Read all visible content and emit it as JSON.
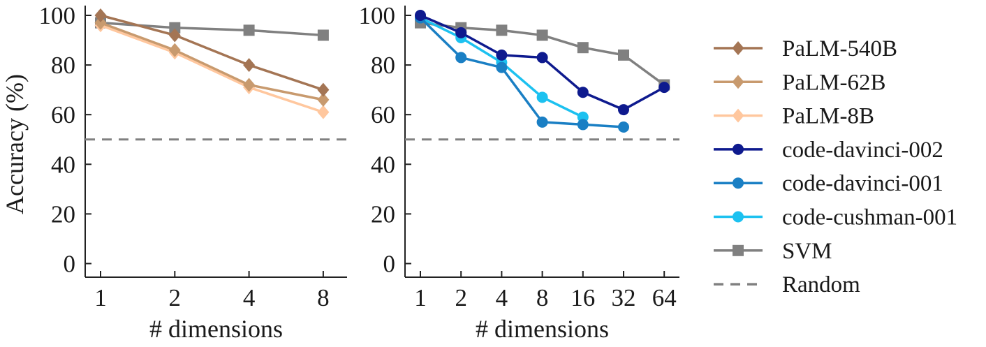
{
  "chart_data": [
    {
      "type": "line",
      "panel": "left",
      "title": "",
      "xlabel": "# dimensions",
      "ylabel": "Accuracy (%)",
      "x_scale": "log2",
      "x": [
        1,
        2,
        4,
        8
      ],
      "x_tick_labels": [
        "1",
        "2",
        "4",
        "8"
      ],
      "ylim": [
        0,
        100
      ],
      "y_ticks": [
        0,
        20,
        40,
        60,
        80,
        100
      ],
      "y_tick_labels": [
        "0",
        "20",
        "40",
        "60",
        "80",
        "100"
      ],
      "grid": false,
      "series": [
        {
          "name": "PaLM-540B",
          "color": "#a47554",
          "marker": "diamond",
          "values": [
            100,
            92,
            80,
            70
          ]
        },
        {
          "name": "PaLM-62B",
          "color": "#c89a6e",
          "marker": "diamond",
          "values": [
            97,
            86,
            72,
            66
          ]
        },
        {
          "name": "PaLM-8B",
          "color": "#ffc79e",
          "marker": "diamond",
          "values": [
            96,
            85,
            71,
            61
          ]
        },
        {
          "name": "SVM",
          "color": "#808080",
          "marker": "square",
          "values": [
            97,
            95,
            94,
            92
          ]
        }
      ],
      "reference_line": {
        "name": "Random",
        "value": 50,
        "color": "#808080",
        "style": "dashed"
      }
    },
    {
      "type": "line",
      "panel": "right",
      "title": "",
      "xlabel": "# dimensions",
      "ylabel": "",
      "x_scale": "log2",
      "x": [
        1,
        2,
        4,
        8,
        16,
        32,
        64
      ],
      "x_tick_labels": [
        "1",
        "2",
        "4",
        "8",
        "16",
        "32",
        "64"
      ],
      "ylim": [
        0,
        100
      ],
      "y_ticks": [
        0,
        20,
        40,
        60,
        80,
        100
      ],
      "y_tick_labels": [
        "0",
        "20",
        "40",
        "60",
        "80",
        "100"
      ],
      "grid": false,
      "series": [
        {
          "name": "code-davinci-002",
          "color": "#0e1a8e",
          "marker": "circle",
          "values": [
            100,
            93,
            84,
            83,
            69,
            62,
            71
          ]
        },
        {
          "name": "code-davinci-001",
          "color": "#1a7fc4",
          "marker": "circle",
          "values": [
            99,
            83,
            79,
            57,
            56,
            55,
            null
          ]
        },
        {
          "name": "code-cushman-001",
          "color": "#1cc1f0",
          "marker": "circle",
          "values": [
            99,
            91,
            81,
            67,
            59,
            null,
            null
          ]
        },
        {
          "name": "SVM",
          "color": "#808080",
          "marker": "square",
          "values": [
            97,
            95,
            94,
            92,
            87,
            84,
            72
          ]
        }
      ],
      "reference_line": {
        "name": "Random",
        "value": 50,
        "color": "#808080",
        "style": "dashed"
      }
    }
  ],
  "legend": {
    "placement": "right",
    "entries": [
      {
        "label": "PaLM-540B",
        "color": "#a47554",
        "marker": "diamond",
        "style": "solid"
      },
      {
        "label": "PaLM-62B",
        "color": "#c89a6e",
        "marker": "diamond",
        "style": "solid"
      },
      {
        "label": "PaLM-8B",
        "color": "#ffc79e",
        "marker": "diamond",
        "style": "solid"
      },
      {
        "label": "code-davinci-002",
        "color": "#0e1a8e",
        "marker": "circle",
        "style": "solid"
      },
      {
        "label": "code-davinci-001",
        "color": "#1a7fc4",
        "marker": "circle",
        "style": "solid"
      },
      {
        "label": "code-cushman-001",
        "color": "#1cc1f0",
        "marker": "circle",
        "style": "solid"
      },
      {
        "label": "SVM",
        "color": "#808080",
        "marker": "square",
        "style": "solid"
      },
      {
        "label": "Random",
        "color": "#808080",
        "marker": "none",
        "style": "dashed"
      }
    ]
  }
}
